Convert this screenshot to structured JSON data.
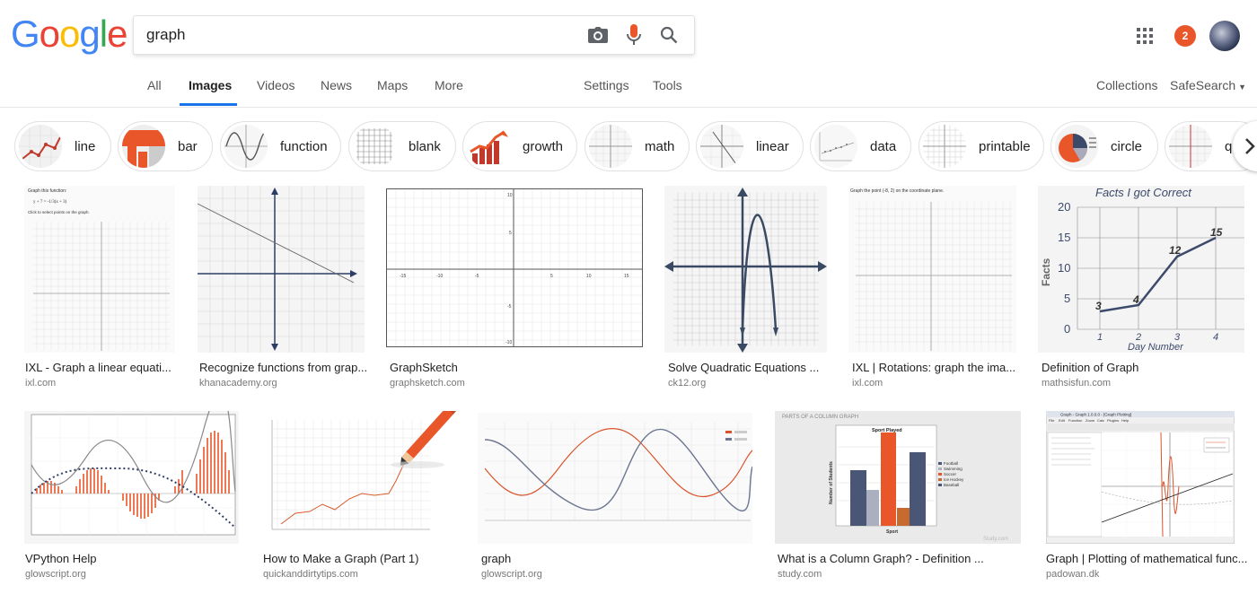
{
  "logo": [
    "G",
    "o",
    "o",
    "g",
    "l",
    "e"
  ],
  "search": {
    "query": "graph"
  },
  "tabs": {
    "all": "All",
    "images": "Images",
    "videos": "Videos",
    "news": "News",
    "maps": "Maps",
    "more": "More",
    "settings": "Settings",
    "tools": "Tools",
    "collections": "Collections",
    "safesearch": "SafeSearch"
  },
  "notifications": {
    "count": "2"
  },
  "chips": [
    "line",
    "bar",
    "function",
    "blank",
    "growth",
    "math",
    "linear",
    "data",
    "printable",
    "circle",
    "qu"
  ],
  "row1": [
    {
      "title": "IXL - Graph a linear equati...",
      "source": "ixl.com"
    },
    {
      "title": "Recognize functions from grap...",
      "source": "khanacademy.org"
    },
    {
      "title": "GraphSketch",
      "source": "graphsketch.com"
    },
    {
      "title": "Solve Quadratic Equations ...",
      "source": "ck12.org"
    },
    {
      "title": "IXL | Rotations: graph the ima...",
      "source": "ixl.com"
    },
    {
      "title": "Definition of Graph",
      "source": "mathsisfun.com"
    }
  ],
  "row2": [
    {
      "title": "VPython Help",
      "source": "glowscript.org"
    },
    {
      "title": "How to Make a Graph (Part 1)",
      "source": "quickanddirtytips.com"
    },
    {
      "title": "graph",
      "source": "glowscript.org"
    },
    {
      "title": "What is a Column Graph? - Definition ...",
      "source": "study.com"
    },
    {
      "title": "Graph | Plotting of mathematical func...",
      "source": "padowan.dk"
    }
  ],
  "thumbs": {
    "ixl1_text1": "Graph this function:",
    "ixl1_text2": "y + 7 = -1/3(x + 3)",
    "ixl1_text3": "Click to select points on the graph.",
    "ixl2_text": "Graph the point (-8, 2) on the coordinate plane.",
    "mif_title": "Facts I got Correct",
    "mif_xlabel": "Day Number",
    "mif_ylabel": "Facts",
    "mif_yticks": [
      "20",
      "15",
      "10",
      "5",
      "0"
    ],
    "mif_xticks": [
      "1",
      "2",
      "3",
      "4"
    ],
    "mif_points": [
      "3",
      "4",
      "12",
      "15"
    ],
    "column_title": "PARTS OF A COLUMN GRAPH",
    "column_header": "Sport Played",
    "column_legend": [
      "Football",
      "Swimming",
      "Soccer",
      "Ice Hockey",
      "Baseball"
    ],
    "column_xlabel": "Sport",
    "column_ylabel": "Number of Students",
    "column_watermark": "Study.com",
    "graphsketch_ticks_x": [
      "-15",
      "-10",
      "-5",
      "5",
      "10",
      "15"
    ],
    "graphsketch_ticks_y": [
      "10",
      "5",
      "-5",
      "-10"
    ],
    "padowan_title": "Graph - Graph 1.0.0.0 - [Graph Plotting]",
    "padowan_menu": [
      "File",
      "Edit",
      "Function",
      "Zoom",
      "Calc",
      "Plugins",
      "Help"
    ]
  }
}
